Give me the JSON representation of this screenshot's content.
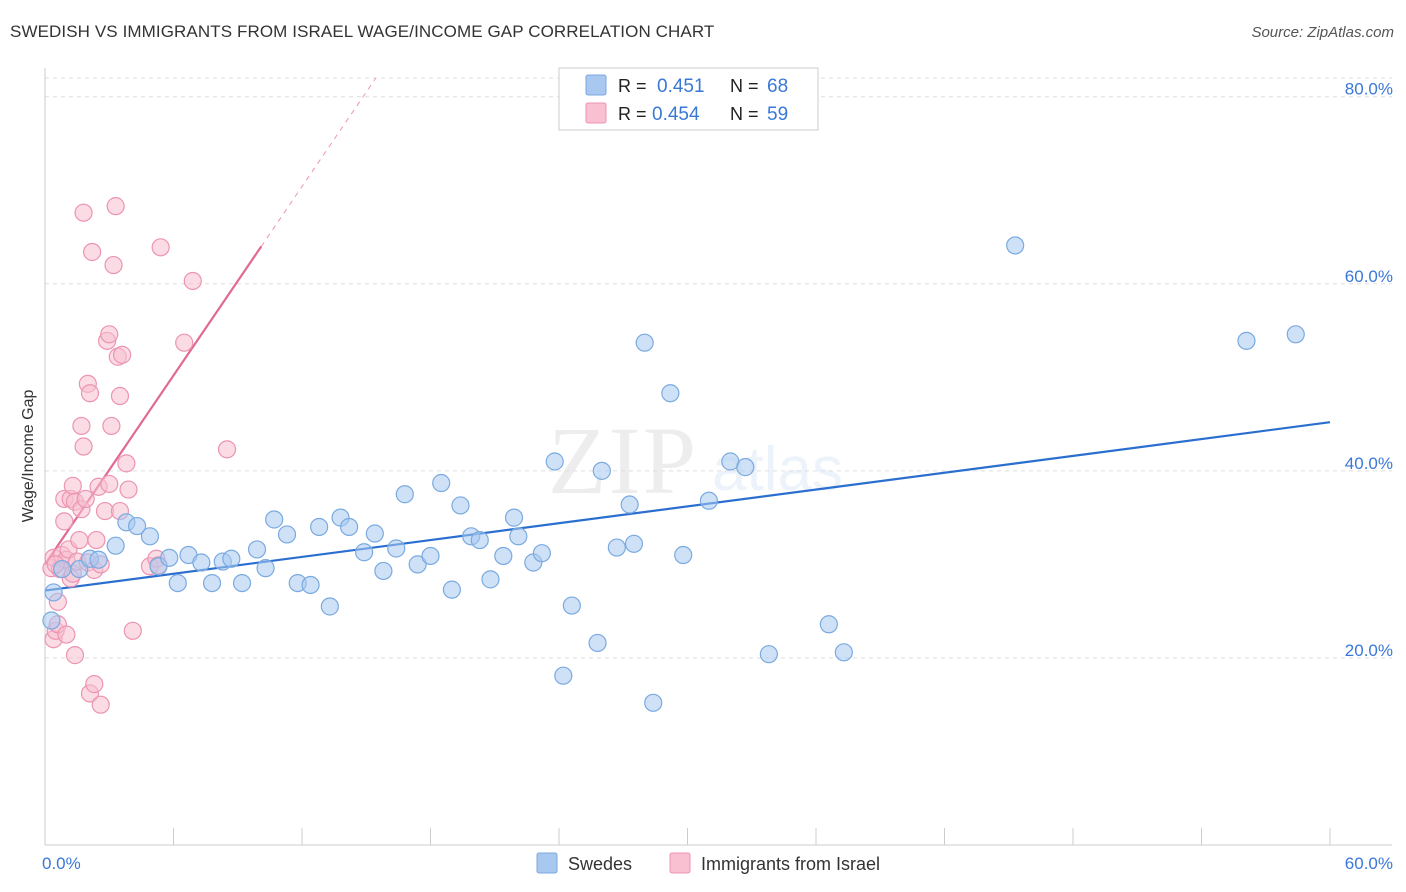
{
  "header": {
    "title": "SWEDISH VS IMMIGRANTS FROM ISRAEL WAGE/INCOME GAP CORRELATION CHART",
    "source": "Source: ZipAtlas.com"
  },
  "watermark": {
    "zip": "ZIP",
    "atlas": "atlas"
  },
  "chart_data": {
    "type": "scatter",
    "title": "SWEDISH VS IMMIGRANTS FROM ISRAEL WAGE/INCOME GAP CORRELATION CHART",
    "xlabel": "",
    "ylabel": "Wage/Income Gap",
    "xlim": [
      0,
      60
    ],
    "ylim": [
      0,
      82
    ],
    "x_ticks": [
      "0.0%",
      "60.0%"
    ],
    "y_ticks": [
      {
        "value": 20,
        "label": "20.0%"
      },
      {
        "value": 40,
        "label": "40.0%"
      },
      {
        "value": 60,
        "label": "60.0%"
      },
      {
        "value": 80,
        "label": "80.0%"
      }
    ],
    "legend": {
      "placement": "top-center",
      "entries": [
        {
          "r_label": "R =",
          "r_value": "0.451",
          "n_label": "N =",
          "n_value": "68"
        },
        {
          "r_label": "R =",
          "r_value": "0.454",
          "n_label": "N =",
          "n_value": "59"
        }
      ]
    },
    "bottom_legend": [
      "Swedes",
      "Immigrants from Israel"
    ],
    "colors": {
      "swedes_fill": "#a8c8f0",
      "swedes_stroke": "#7aaae0",
      "swedes_line": "#2a6fd0",
      "israel_fill": "#f8c0d0",
      "israel_stroke": "#ec94b2",
      "israel_line": "#e06a94",
      "value_text": "#3a78d8",
      "grid": "#dddddd"
    },
    "series": [
      {
        "name": "Swedes",
        "trend": {
          "x": [
            0,
            60
          ],
          "y": [
            27.2,
            45.2
          ]
        },
        "points": [
          [
            0.4,
            27.0
          ],
          [
            0.3,
            24.0
          ],
          [
            0.8,
            29.5
          ],
          [
            1.6,
            29.5
          ],
          [
            2.1,
            30.6
          ],
          [
            2.5,
            30.5
          ],
          [
            3.3,
            32.0
          ],
          [
            3.8,
            34.5
          ],
          [
            4.3,
            34.1
          ],
          [
            4.9,
            33.0
          ],
          [
            5.3,
            29.8
          ],
          [
            5.8,
            30.7
          ],
          [
            6.2,
            28.0
          ],
          [
            6.7,
            31.0
          ],
          [
            7.3,
            30.2
          ],
          [
            7.8,
            28.0
          ],
          [
            8.3,
            30.3
          ],
          [
            8.7,
            30.6
          ],
          [
            9.2,
            28.0
          ],
          [
            9.9,
            31.6
          ],
          [
            10.3,
            29.6
          ],
          [
            10.7,
            34.8
          ],
          [
            11.3,
            33.2
          ],
          [
            11.8,
            28.0
          ],
          [
            12.4,
            27.8
          ],
          [
            12.8,
            34.0
          ],
          [
            13.3,
            25.5
          ],
          [
            13.8,
            35.0
          ],
          [
            14.2,
            34.0
          ],
          [
            14.9,
            31.3
          ],
          [
            15.4,
            33.3
          ],
          [
            15.8,
            29.3
          ],
          [
            16.4,
            31.7
          ],
          [
            16.8,
            37.5
          ],
          [
            17.4,
            30.0
          ],
          [
            18.0,
            30.9
          ],
          [
            18.5,
            38.7
          ],
          [
            19.0,
            27.3
          ],
          [
            19.4,
            36.3
          ],
          [
            19.9,
            33.0
          ],
          [
            20.3,
            32.6
          ],
          [
            20.8,
            28.4
          ],
          [
            21.4,
            30.9
          ],
          [
            21.9,
            35.0
          ],
          [
            22.1,
            33.0
          ],
          [
            22.8,
            30.2
          ],
          [
            23.2,
            31.2
          ],
          [
            23.8,
            41.0
          ],
          [
            24.2,
            18.1
          ],
          [
            24.6,
            25.6
          ],
          [
            25.8,
            21.6
          ],
          [
            26.0,
            40.0
          ],
          [
            26.7,
            31.8
          ],
          [
            27.3,
            36.4
          ],
          [
            27.5,
            32.2
          ],
          [
            28.0,
            53.7
          ],
          [
            28.4,
            15.2
          ],
          [
            29.2,
            48.3
          ],
          [
            29.8,
            31.0
          ],
          [
            31.0,
            36.8
          ],
          [
            32.0,
            41.0
          ],
          [
            32.7,
            40.4
          ],
          [
            33.8,
            20.4
          ],
          [
            36.6,
            23.6
          ],
          [
            37.3,
            20.6
          ],
          [
            45.3,
            64.1
          ],
          [
            56.1,
            53.9
          ],
          [
            58.4,
            54.6
          ]
        ]
      },
      {
        "name": "Immigrants from Israel",
        "trend": {
          "x": [
            0,
            10.1
          ],
          "y": [
            30.0,
            64.0
          ]
        },
        "points": [
          [
            0.3,
            29.6
          ],
          [
            0.4,
            30.7
          ],
          [
            0.4,
            22.0
          ],
          [
            0.5,
            22.9
          ],
          [
            0.6,
            23.6
          ],
          [
            0.6,
            26.0
          ],
          [
            0.7,
            29.5
          ],
          [
            0.8,
            31.0
          ],
          [
            0.9,
            34.6
          ],
          [
            0.9,
            37.0
          ],
          [
            1.0,
            30.5
          ],
          [
            1.1,
            31.6
          ],
          [
            1.2,
            28.5
          ],
          [
            1.2,
            37.0
          ],
          [
            1.3,
            29.0
          ],
          [
            1.3,
            38.4
          ],
          [
            1.4,
            36.7
          ],
          [
            1.4,
            20.3
          ],
          [
            1.5,
            30.3
          ],
          [
            1.6,
            32.6
          ],
          [
            1.7,
            35.9
          ],
          [
            1.7,
            44.8
          ],
          [
            1.8,
            67.6
          ],
          [
            1.8,
            42.6
          ],
          [
            1.9,
            37.0
          ],
          [
            2.0,
            30.2
          ],
          [
            2.0,
            49.3
          ],
          [
            2.1,
            48.3
          ],
          [
            2.1,
            16.2
          ],
          [
            2.2,
            63.4
          ],
          [
            2.3,
            29.4
          ],
          [
            2.3,
            17.2
          ],
          [
            2.4,
            32.6
          ],
          [
            2.5,
            38.3
          ],
          [
            2.6,
            15.0
          ],
          [
            2.6,
            30.0
          ],
          [
            2.8,
            35.7
          ],
          [
            2.9,
            53.9
          ],
          [
            3.0,
            54.6
          ],
          [
            3.0,
            38.6
          ],
          [
            3.1,
            44.8
          ],
          [
            3.2,
            62.0
          ],
          [
            3.3,
            68.3
          ],
          [
            3.4,
            52.2
          ],
          [
            3.5,
            35.7
          ],
          [
            3.5,
            48.0
          ],
          [
            3.6,
            52.4
          ],
          [
            3.8,
            40.8
          ],
          [
            3.9,
            38.0
          ],
          [
            4.1,
            22.9
          ],
          [
            4.9,
            29.8
          ],
          [
            5.2,
            30.6
          ],
          [
            5.3,
            29.9
          ],
          [
            5.4,
            63.9
          ],
          [
            6.5,
            53.7
          ],
          [
            6.9,
            60.3
          ],
          [
            8.5,
            42.3
          ],
          [
            1.0,
            22.5
          ],
          [
            0.5,
            30.0
          ]
        ]
      }
    ]
  }
}
